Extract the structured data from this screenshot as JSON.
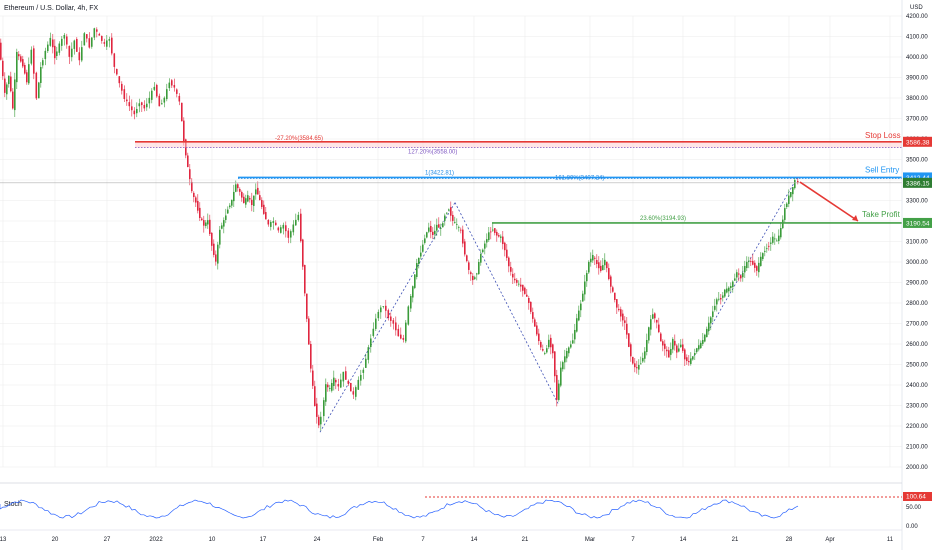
{
  "header": {
    "symbol_title": "Ethereum / U.S. Dollar, 4h, FX",
    "currency": "USD",
    "stoch_label": "Stoch"
  },
  "colors": {
    "up": "#26a69a",
    "down": "#ef5350",
    "up_body": "#3a9b3a",
    "down_body": "#e0263f",
    "stop": "#e53935",
    "entry": "#2196f3",
    "profit": "#43a047",
    "stoch": "#2962ff",
    "grid": "#ececec"
  },
  "chart_data": {
    "type": "candlestick",
    "symbol": "Ethereum / U.S. Dollar",
    "timeframe": "4h",
    "ylim": [
      2000,
      4200
    ],
    "y_ticks": [
      4200,
      4100,
      4000,
      3900,
      3800,
      3700,
      3600,
      3500,
      3400,
      3300,
      3200,
      3100,
      3000,
      2900,
      2800,
      2700,
      2600,
      2500,
      2400,
      2300,
      2200,
      2100,
      2000
    ],
    "x_ticks": [
      "13",
      "20",
      "27",
      "2022",
      "10",
      "17",
      "24",
      "Feb",
      "7",
      "14",
      "21",
      "Mar",
      "7",
      "14",
      "21",
      "28",
      "Apr",
      "11"
    ],
    "price_path": [
      [
        0,
        4070
      ],
      [
        6,
        3820
      ],
      [
        10,
        3910
      ],
      [
        14,
        3750
      ],
      [
        18,
        4020
      ],
      [
        24,
        3960
      ],
      [
        28,
        3880
      ],
      [
        33,
        4040
      ],
      [
        38,
        3800
      ],
      [
        42,
        3950
      ],
      [
        47,
        4030
      ],
      [
        52,
        4090
      ],
      [
        56,
        4000
      ],
      [
        61,
        4060
      ],
      [
        66,
        4110
      ],
      [
        71,
        4000
      ],
      [
        76,
        4080
      ],
      [
        81,
        3980
      ],
      [
        86,
        4120
      ],
      [
        91,
        4050
      ],
      [
        96,
        4140
      ],
      [
        101,
        4100
      ],
      [
        106,
        4060
      ],
      [
        111,
        4090
      ],
      [
        116,
        3950
      ],
      [
        121,
        3870
      ],
      [
        126,
        3800
      ],
      [
        131,
        3760
      ],
      [
        136,
        3720
      ],
      [
        141,
        3780
      ],
      [
        146,
        3750
      ],
      [
        151,
        3800
      ],
      [
        156,
        3860
      ],
      [
        161,
        3760
      ],
      [
        166,
        3800
      ],
      [
        171,
        3880
      ],
      [
        176,
        3850
      ],
      [
        181,
        3780
      ],
      [
        185,
        3590
      ],
      [
        189,
        3460
      ],
      [
        193,
        3340
      ],
      [
        197,
        3290
      ],
      [
        201,
        3220
      ],
      [
        205,
        3180
      ],
      [
        209,
        3200
      ],
      [
        213,
        3080
      ],
      [
        217,
        3000
      ],
      [
        221,
        3160
      ],
      [
        225,
        3200
      ],
      [
        229,
        3260
      ],
      [
        233,
        3300
      ],
      [
        237,
        3380
      ],
      [
        241,
        3340
      ],
      [
        245,
        3290
      ],
      [
        249,
        3320
      ],
      [
        253,
        3280
      ],
      [
        257,
        3360
      ],
      [
        261,
        3300
      ],
      [
        265,
        3240
      ],
      [
        270,
        3180
      ],
      [
        275,
        3200
      ],
      [
        280,
        3150
      ],
      [
        285,
        3180
      ],
      [
        290,
        3120
      ],
      [
        295,
        3180
      ],
      [
        300,
        3230
      ],
      [
        304,
        2980
      ],
      [
        308,
        2720
      ],
      [
        312,
        2480
      ],
      [
        316,
        2300
      ],
      [
        320,
        2200
      ],
      [
        323,
        2250
      ],
      [
        327,
        2400
      ],
      [
        331,
        2380
      ],
      [
        335,
        2430
      ],
      [
        340,
        2390
      ],
      [
        345,
        2460
      ],
      [
        350,
        2400
      ],
      [
        355,
        2350
      ],
      [
        360,
        2420
      ],
      [
        365,
        2480
      ],
      [
        370,
        2580
      ],
      [
        375,
        2680
      ],
      [
        380,
        2760
      ],
      [
        385,
        2790
      ],
      [
        390,
        2730
      ],
      [
        395,
        2700
      ],
      [
        400,
        2640
      ],
      [
        405,
        2620
      ],
      [
        410,
        2780
      ],
      [
        414,
        2880
      ],
      [
        418,
        2990
      ],
      [
        422,
        3050
      ],
      [
        426,
        3120
      ],
      [
        430,
        3170
      ],
      [
        434,
        3130
      ],
      [
        438,
        3180
      ],
      [
        442,
        3160
      ],
      [
        446,
        3230
      ],
      [
        450,
        3260
      ],
      [
        454,
        3200
      ],
      [
        458,
        3180
      ],
      [
        462,
        3150
      ],
      [
        466,
        3040
      ],
      [
        470,
        2960
      ],
      [
        474,
        2910
      ],
      [
        478,
        2950
      ],
      [
        482,
        3040
      ],
      [
        486,
        3090
      ],
      [
        490,
        3140
      ],
      [
        494,
        3160
      ],
      [
        498,
        3130
      ],
      [
        502,
        3120
      ],
      [
        506,
        3060
      ],
      [
        510,
        2980
      ],
      [
        514,
        2920
      ],
      [
        518,
        2900
      ],
      [
        522,
        2880
      ],
      [
        526,
        2850
      ],
      [
        530,
        2800
      ],
      [
        534,
        2720
      ],
      [
        538,
        2650
      ],
      [
        542,
        2580
      ],
      [
        546,
        2550
      ],
      [
        550,
        2620
      ],
      [
        554,
        2560
      ],
      [
        558,
        2330
      ],
      [
        562,
        2480
      ],
      [
        566,
        2540
      ],
      [
        570,
        2580
      ],
      [
        574,
        2620
      ],
      [
        578,
        2720
      ],
      [
        582,
        2800
      ],
      [
        586,
        2900
      ],
      [
        590,
        3000
      ],
      [
        594,
        3030
      ],
      [
        598,
        2990
      ],
      [
        602,
        2960
      ],
      [
        606,
        3010
      ],
      [
        610,
        2920
      ],
      [
        614,
        2850
      ],
      [
        618,
        2780
      ],
      [
        622,
        2740
      ],
      [
        626,
        2700
      ],
      [
        630,
        2590
      ],
      [
        634,
        2500
      ],
      [
        638,
        2480
      ],
      [
        642,
        2510
      ],
      [
        646,
        2560
      ],
      [
        650,
        2680
      ],
      [
        654,
        2750
      ],
      [
        658,
        2700
      ],
      [
        662,
        2610
      ],
      [
        666,
        2580
      ],
      [
        670,
        2540
      ],
      [
        674,
        2620
      ],
      [
        678,
        2560
      ],
      [
        682,
        2600
      ],
      [
        686,
        2530
      ],
      [
        690,
        2510
      ],
      [
        694,
        2540
      ],
      [
        698,
        2580
      ],
      [
        702,
        2600
      ],
      [
        706,
        2640
      ],
      [
        710,
        2700
      ],
      [
        714,
        2760
      ],
      [
        718,
        2820
      ],
      [
        722,
        2820
      ],
      [
        726,
        2860
      ],
      [
        730,
        2870
      ],
      [
        734,
        2900
      ],
      [
        738,
        2950
      ],
      [
        742,
        2920
      ],
      [
        746,
        2980
      ],
      [
        750,
        3010
      ],
      [
        754,
        2990
      ],
      [
        758,
        2960
      ],
      [
        762,
        3020
      ],
      [
        766,
        3060
      ],
      [
        770,
        3080
      ],
      [
        774,
        3120
      ],
      [
        778,
        3100
      ],
      [
        782,
        3160
      ],
      [
        786,
        3260
      ],
      [
        790,
        3320
      ],
      [
        794,
        3360
      ],
      [
        797,
        3400
      ],
      [
        800,
        3386
      ]
    ],
    "levels": [
      {
        "name": "Stop Loss",
        "value": 3586.38,
        "badge": "3586.38",
        "color": "#e53935"
      },
      {
        "name": "Sell Entry",
        "value": 3412.44,
        "badge": "3412.44",
        "color": "#2196f3"
      },
      {
        "name": "Take Profit",
        "value": 3190.54,
        "badge": "3190.54",
        "color": "#43a047"
      }
    ],
    "current_price": {
      "value": 3386.15,
      "badge": "3386.15"
    },
    "fib_labels": [
      {
        "text": "-27.20%(3584.65)",
        "value": 3584.65
      },
      {
        "text": "127.20%(3558.00)",
        "value": 3558.0
      },
      {
        "text": "1(3422.81)",
        "value": 3422.81
      },
      {
        "text": "161.80%(3407.24)",
        "value": 3407.24
      },
      {
        "text": "23.60%(3194.93)",
        "value": 3194.93
      }
    ],
    "stochastic": {
      "label": "Stoch",
      "ylim": [
        0,
        100
      ],
      "y_ticks": [
        "100.00",
        "50.00",
        "0.00"
      ],
      "current": "100.64"
    }
  }
}
